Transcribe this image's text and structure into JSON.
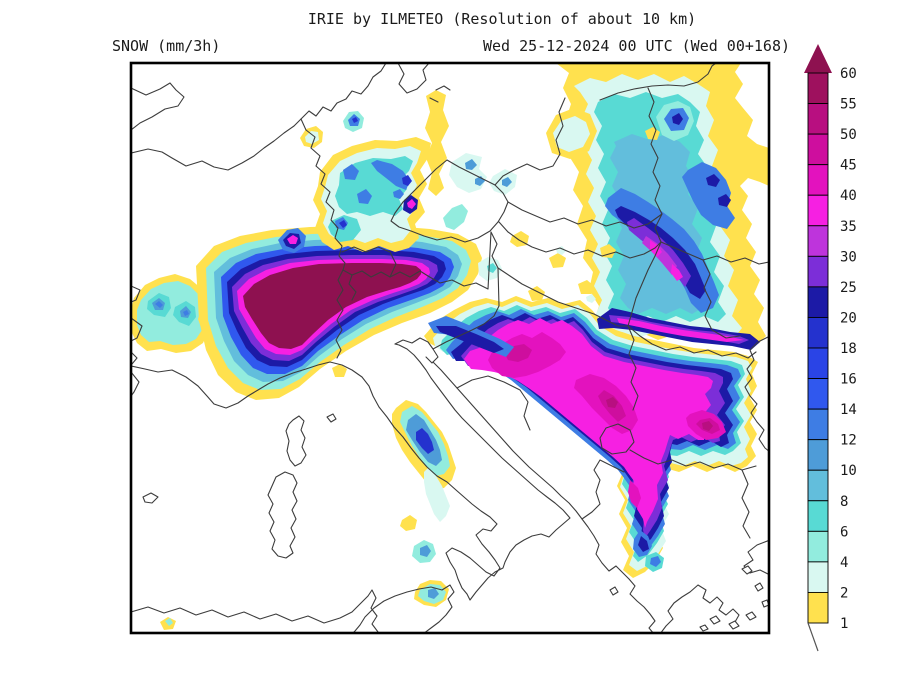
{
  "header": {
    "title": "IRIE by ILMETEO (Resolution of about 10 km)",
    "variable_label": "SNOW (mm/3h)",
    "valid_time_label": "Wed 25-12-2024 00 UTC (Wed 00+168)"
  },
  "map": {
    "background_color": "#ffffff",
    "frame_color": "#000000",
    "coastline_color": "#3c3c3c"
  },
  "legend": {
    "unit": "mm/3h",
    "tick_labels": [
      "60",
      "55",
      "50",
      "45",
      "40",
      "35",
      "30",
      "25",
      "20",
      "18",
      "16",
      "14",
      "12",
      "10",
      "8",
      "6",
      "4",
      "2",
      "1"
    ],
    "segment_colors_top_to_bottom": [
      "#9E115E",
      "#B80F80",
      "#CE0E9E",
      "#E312BE",
      "#F620E2",
      "#BE34DC",
      "#7C2ED8",
      "#1C1AA6",
      "#2432CE",
      "#2A44E6",
      "#3058EE",
      "#3E7DE4",
      "#4E9CD8",
      "#62BEDC",
      "#58DAD4",
      "#92ECDE",
      "#D9F8F1",
      "#FFE14E"
    ],
    "arrow_color": "#8E1150"
  }
}
